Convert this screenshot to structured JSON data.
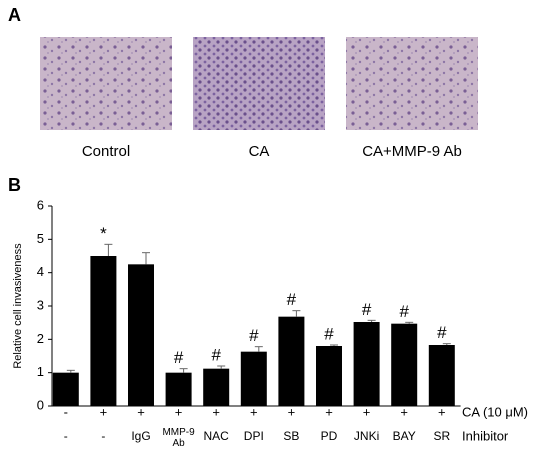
{
  "panel_a": {
    "label": "A",
    "images": [
      "Control",
      "CA",
      "CA+MMP-9 Ab"
    ]
  },
  "panel_b_label": "B",
  "chart_data": {
    "type": "bar",
    "y_label": "Relative cell invasiveness",
    "categories": [
      "-",
      "-",
      "IgG",
      "MMP-9 Ab",
      "NAC",
      "DPI",
      "SB",
      "PD",
      "JNKi",
      "BAY",
      "SR"
    ],
    "ca_row": [
      "-",
      "+",
      "+",
      "+",
      "+",
      "+",
      "+",
      "+",
      "+",
      "+",
      "+"
    ],
    "row_labels": [
      "CA (10 μM)",
      "Inhibitor"
    ],
    "values": [
      1.0,
      4.5,
      4.25,
      1.0,
      1.12,
      1.63,
      2.68,
      1.8,
      2.52,
      2.47,
      1.83
    ],
    "errors": [
      0.07,
      0.35,
      0.35,
      0.12,
      0.08,
      0.15,
      0.18,
      0.03,
      0.05,
      0.04,
      0.04
    ],
    "annotations": [
      null,
      "*",
      null,
      "#",
      "#",
      "#",
      "#",
      "#",
      "#",
      "#",
      "#"
    ],
    "color": "#000000",
    "ylim": [
      0,
      6
    ],
    "yticks": [
      0,
      1,
      2,
      3,
      4,
      5,
      6
    ]
  }
}
